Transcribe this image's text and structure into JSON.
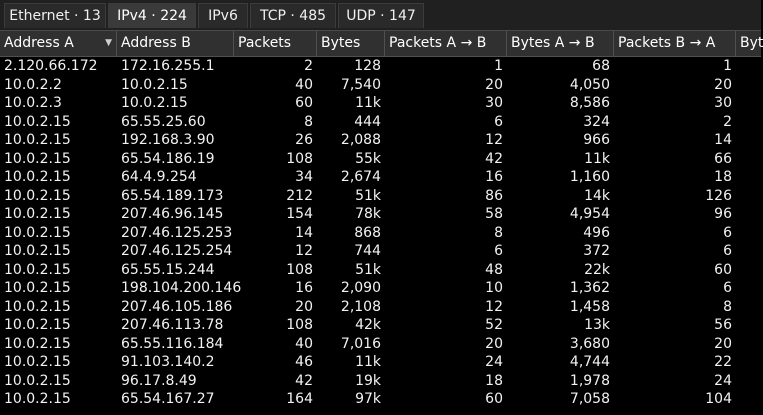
{
  "tabs": [
    {
      "label": "Ethernet · 13",
      "active": false
    },
    {
      "label": "IPv4 · 224",
      "active": true
    },
    {
      "label": "IPv6",
      "active": false
    },
    {
      "label": "TCP · 485",
      "active": false
    },
    {
      "label": "UDP · 147",
      "active": false
    }
  ],
  "table": {
    "columns": [
      "Address A",
      "Address B",
      "Packets",
      "Bytes",
      "Packets A → B",
      "Bytes A → B",
      "Packets B → A",
      "Byt"
    ],
    "sorted_column": "Address A",
    "rows": [
      [
        "2.120.66.172",
        "172.16.255.1",
        "2",
        "128",
        "1",
        "68",
        "1"
      ],
      [
        "10.0.2.2",
        "10.0.2.15",
        "40",
        "7,540",
        "20",
        "4,050",
        "20"
      ],
      [
        "10.0.2.3",
        "10.0.2.15",
        "60",
        "11k",
        "30",
        "8,586",
        "30"
      ],
      [
        "10.0.2.15",
        "65.55.25.60",
        "8",
        "444",
        "6",
        "324",
        "2"
      ],
      [
        "10.0.2.15",
        "192.168.3.90",
        "26",
        "2,088",
        "12",
        "966",
        "14"
      ],
      [
        "10.0.2.15",
        "65.54.186.19",
        "108",
        "55k",
        "42",
        "11k",
        "66"
      ],
      [
        "10.0.2.15",
        "64.4.9.254",
        "34",
        "2,674",
        "16",
        "1,160",
        "18"
      ],
      [
        "10.0.2.15",
        "65.54.189.173",
        "212",
        "51k",
        "86",
        "14k",
        "126"
      ],
      [
        "10.0.2.15",
        "207.46.96.145",
        "154",
        "78k",
        "58",
        "4,954",
        "96"
      ],
      [
        "10.0.2.15",
        "207.46.125.253",
        "14",
        "868",
        "8",
        "496",
        "6"
      ],
      [
        "10.0.2.15",
        "207.46.125.254",
        "12",
        "744",
        "6",
        "372",
        "6"
      ],
      [
        "10.0.2.15",
        "65.55.15.244",
        "108",
        "51k",
        "48",
        "22k",
        "60"
      ],
      [
        "10.0.2.15",
        "198.104.200.146",
        "16",
        "2,090",
        "10",
        "1,362",
        "6"
      ],
      [
        "10.0.2.15",
        "207.46.105.186",
        "20",
        "2,108",
        "12",
        "1,458",
        "8"
      ],
      [
        "10.0.2.15",
        "207.46.113.78",
        "108",
        "42k",
        "52",
        "13k",
        "56"
      ],
      [
        "10.0.2.15",
        "65.55.116.184",
        "40",
        "7,016",
        "20",
        "3,680",
        "20"
      ],
      [
        "10.0.2.15",
        "91.103.140.2",
        "46",
        "11k",
        "24",
        "4,744",
        "22"
      ],
      [
        "10.0.2.15",
        "96.17.8.49",
        "42",
        "19k",
        "18",
        "1,978",
        "24"
      ],
      [
        "10.0.2.15",
        "65.54.167.27",
        "164",
        "97k",
        "60",
        "7,058",
        "104"
      ]
    ]
  },
  "colors": {
    "background": "#000000",
    "header": "#303030",
    "tab_active": "#3a3a3a",
    "text": "#f2f2f2"
  }
}
